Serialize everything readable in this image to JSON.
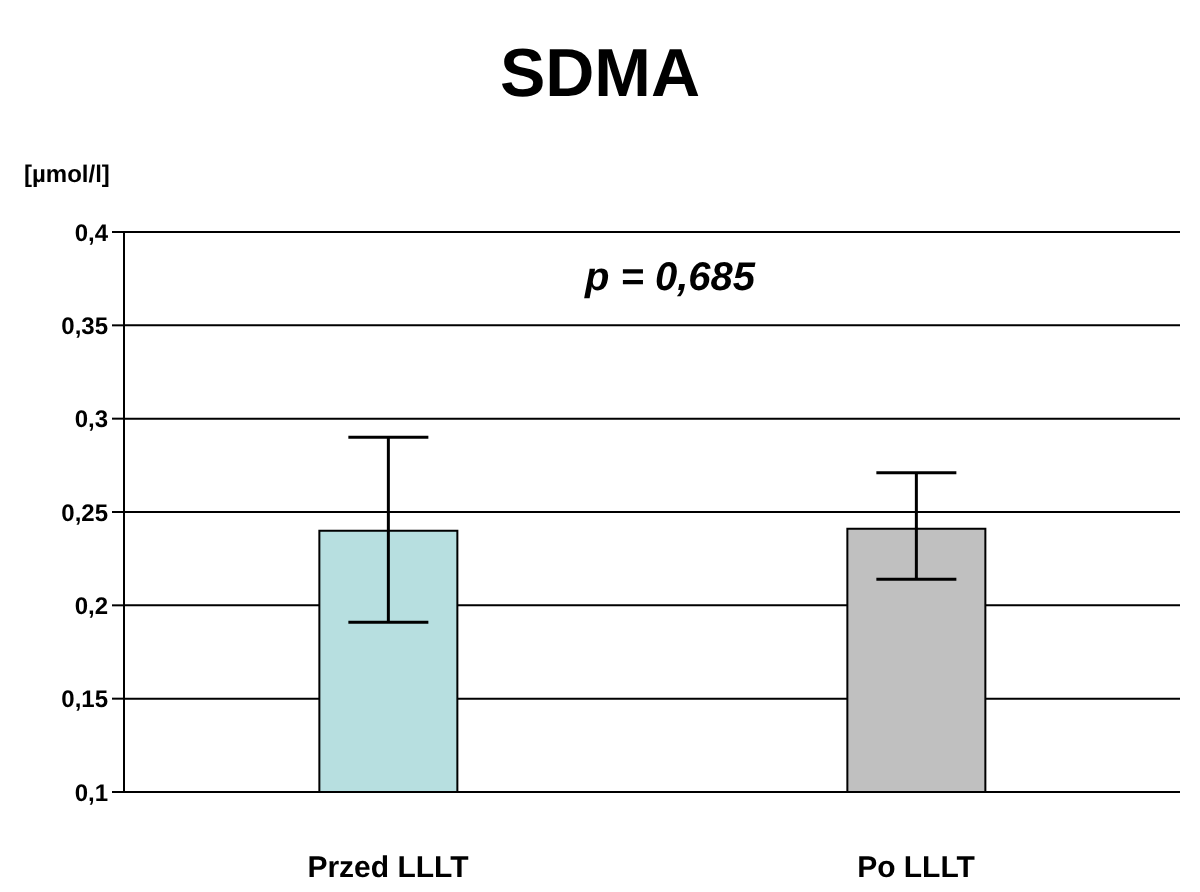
{
  "chart_data": {
    "type": "bar",
    "title": "SDMA",
    "ylabel": "[µmol/l]",
    "categories": [
      "Przed LLLT",
      "Po LLLT"
    ],
    "values": [
      0.24,
      0.241
    ],
    "colors": [
      "#b7dfe0",
      "#c0c0c0"
    ],
    "errors": [
      [
        0.191,
        0.29
      ],
      [
        0.214,
        0.271
      ]
    ],
    "ylim": [
      0.1,
      0.4
    ],
    "yticks": [
      {
        "value": 0.1,
        "label": "0,1"
      },
      {
        "value": 0.15,
        "label": "0,15"
      },
      {
        "value": 0.2,
        "label": "0,2"
      },
      {
        "value": 0.25,
        "label": "0,25"
      },
      {
        "value": 0.3,
        "label": "0,3"
      },
      {
        "value": 0.35,
        "label": "0,35"
      },
      {
        "value": 0.4,
        "label": "0,4"
      }
    ],
    "grid": "y",
    "annotations": [
      "p = 0,685"
    ]
  }
}
